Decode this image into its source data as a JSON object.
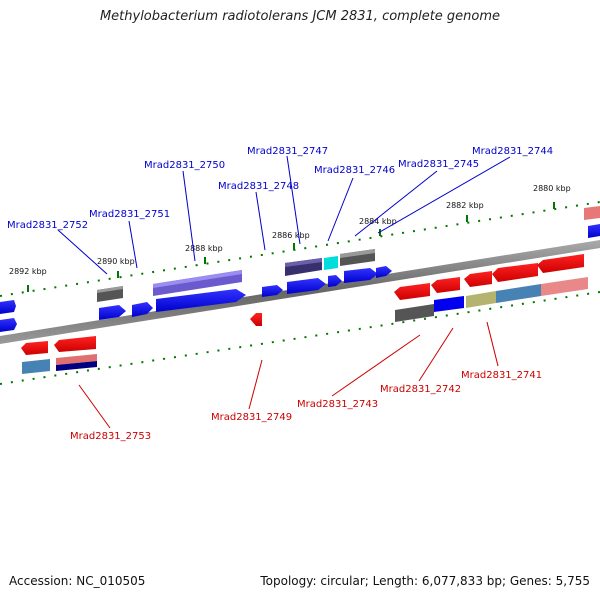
{
  "title": "Methylobacterium radiotolerans JCM 2831, complete genome",
  "footer": {
    "accession": "Accession: NC_010505",
    "summary": "Topology: circular; Length: 6,077,833 bp; Genes: 5,755"
  },
  "scale": {
    "ticks": [
      {
        "label": "2892 kbp"
      },
      {
        "label": "2890 kbp"
      },
      {
        "label": "2888 kbp"
      },
      {
        "label": "2886 kbp"
      },
      {
        "label": "2884 kbp"
      },
      {
        "label": "2882 kbp"
      },
      {
        "label": "2880 kbp"
      }
    ]
  },
  "genes_top": [
    {
      "label": "Mrad2831_2752"
    },
    {
      "label": "Mrad2831_2751"
    },
    {
      "label": "Mrad2831_2750"
    },
    {
      "label": "Mrad2831_2748"
    },
    {
      "label": "Mrad2831_2747"
    },
    {
      "label": "Mrad2831_2746"
    },
    {
      "label": "Mrad2831_2745"
    },
    {
      "label": "Mrad2831_2744"
    }
  ],
  "genes_bottom": [
    {
      "label": "Mrad2831_2753"
    },
    {
      "label": "Mrad2831_2749"
    },
    {
      "label": "Mrad2831_2743"
    },
    {
      "label": "Mrad2831_2742"
    },
    {
      "label": "Mrad2831_2741"
    }
  ],
  "colors": {
    "forward": "#0000ee",
    "reverse": "#ee0000",
    "top_label": "#0000cc",
    "bottom_label": "#cc0000",
    "tick": "#006600",
    "backbone": "#777777"
  }
}
